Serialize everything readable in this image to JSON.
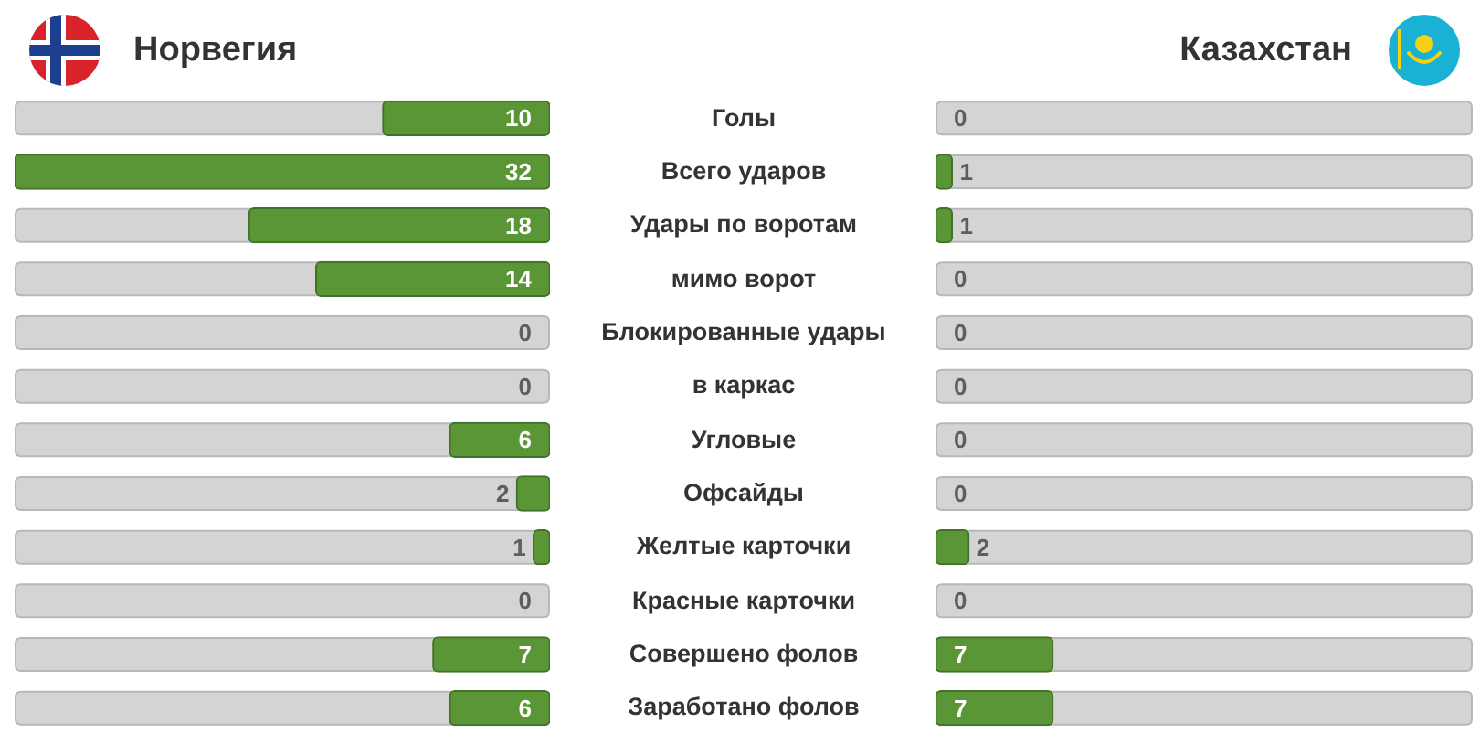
{
  "chart_data": [
    {
      "type": "bar",
      "orientation": "horizontal",
      "tick_labels": "y",
      "data_labels": true,
      "categories": [
        "Голы",
        "Всего ударов",
        "Удары по воротам",
        "мимо ворот",
        "Блокированные удары",
        "в каркас",
        "Угловые",
        "Офсайды",
        "Желтые карточки",
        "Красные карточки",
        "Совершено фолов",
        "Заработано фолов"
      ],
      "series": [
        {
          "name": "Норвегия",
          "color": "#5a9636",
          "values": [
            10,
            32,
            18,
            14,
            0,
            0,
            6,
            2,
            1,
            0,
            7,
            6
          ]
        }
      ]
    },
    {
      "type": "bar",
      "orientation": "horizontal",
      "data_labels": true,
      "categories": [
        null,
        null,
        null,
        null,
        null,
        null,
        null,
        null,
        null,
        null,
        null,
        null
      ],
      "series": [
        {
          "name": "Казахстан",
          "color": "#5a9636",
          "values": [
            0,
            1,
            1,
            0,
            0,
            0,
            0,
            0,
            2,
            0,
            7,
            7
          ]
        }
      ]
    }
  ]
}
